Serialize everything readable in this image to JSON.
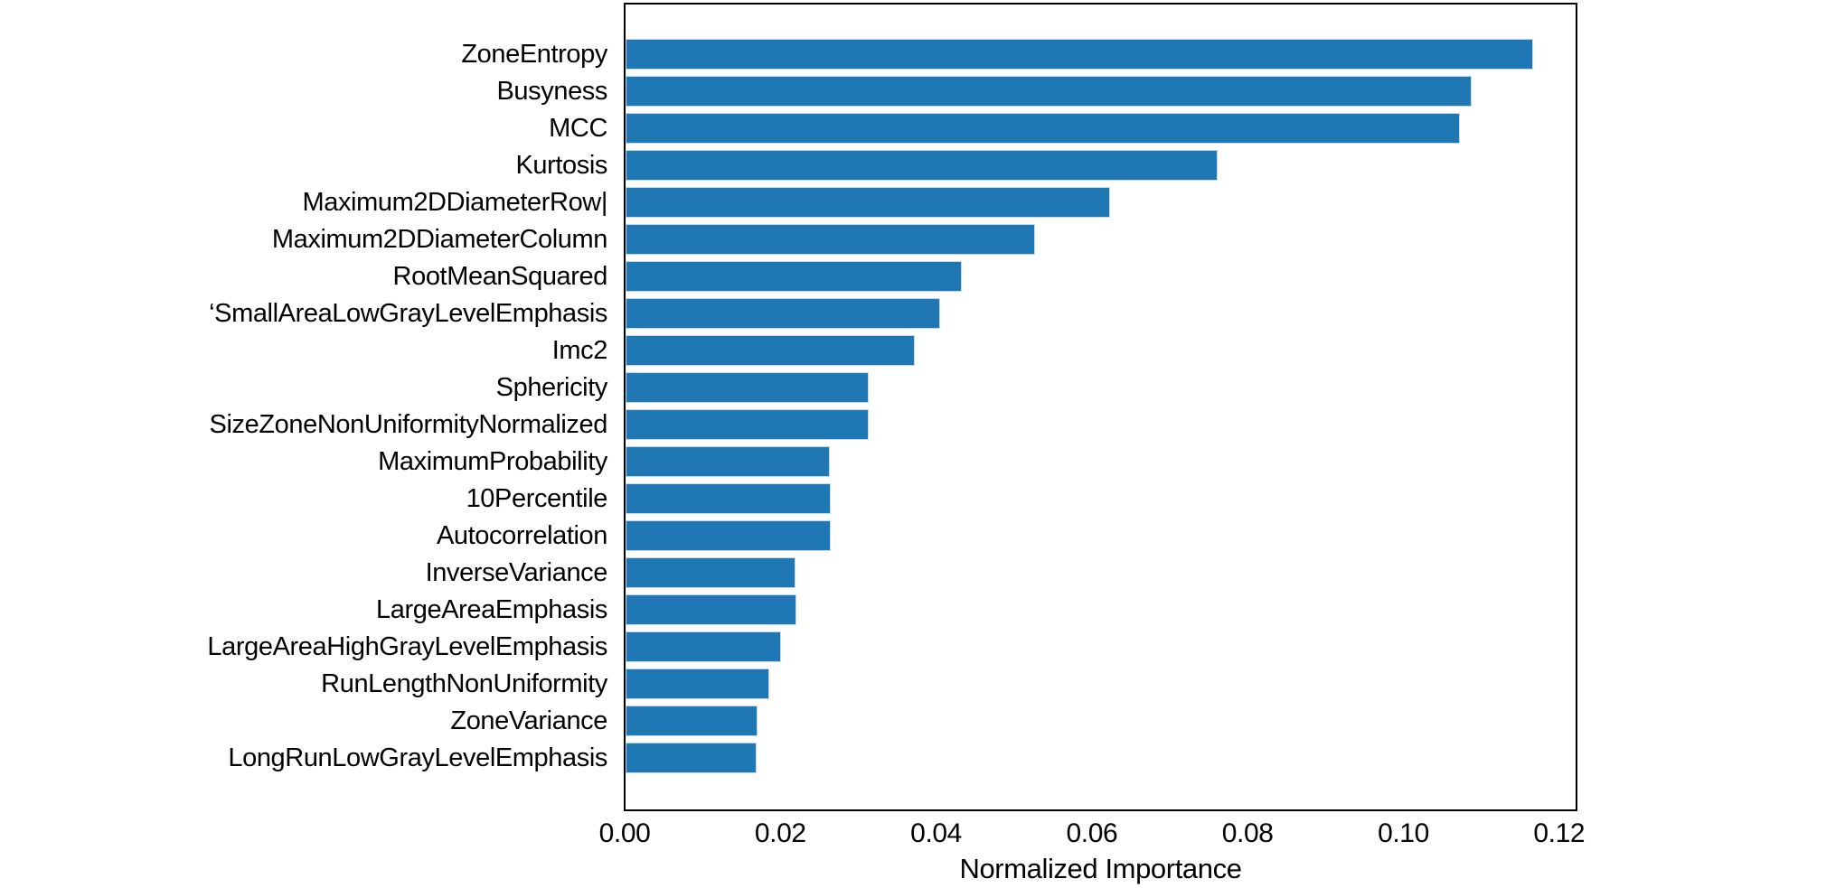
{
  "chart_data": {
    "type": "bar",
    "orientation": "horizontal",
    "title": "",
    "xlabel": "Normalized Importance",
    "ylabel": "",
    "categories": [
      "ZoneEntropy",
      "Busyness",
      "MCC",
      "Kurtosis",
      "Maximum2DDiameterRow|",
      "Maximum2DDiameterColumn",
      "RootMeanSquared",
      "‘SmallAreaLowGrayLevelEmphasis",
      "Imc2",
      "Sphericity",
      "SizeZoneNonUniformityNormalized",
      "MaximumProbability",
      "10Percentile",
      "Autocorrelation",
      "InverseVariance",
      "LargeAreaEmphasis",
      "LargeAreaHighGrayLevelEmphasis",
      "RunLengthNonUniformity",
      "ZoneVariance",
      "LongRunLowGrayLevelEmphasis"
    ],
    "values": [
      0.1165,
      0.1087,
      0.1071,
      0.076,
      0.0622,
      0.0526,
      0.0432,
      0.0404,
      0.0372,
      0.0312,
      0.0312,
      0.0262,
      0.0263,
      0.0264,
      0.0218,
      0.0219,
      0.02,
      0.0184,
      0.017,
      0.0168
    ],
    "x_ticks": [
      "0.00",
      "0.02",
      "0.04",
      "0.06",
      "0.08",
      "0.10",
      "0.12"
    ],
    "xlim": [
      0,
      0.122
    ],
    "grid": false,
    "legend": null,
    "bar_color": "#1f77b4",
    "axis_color": "#000000",
    "text_color": "#000000"
  }
}
